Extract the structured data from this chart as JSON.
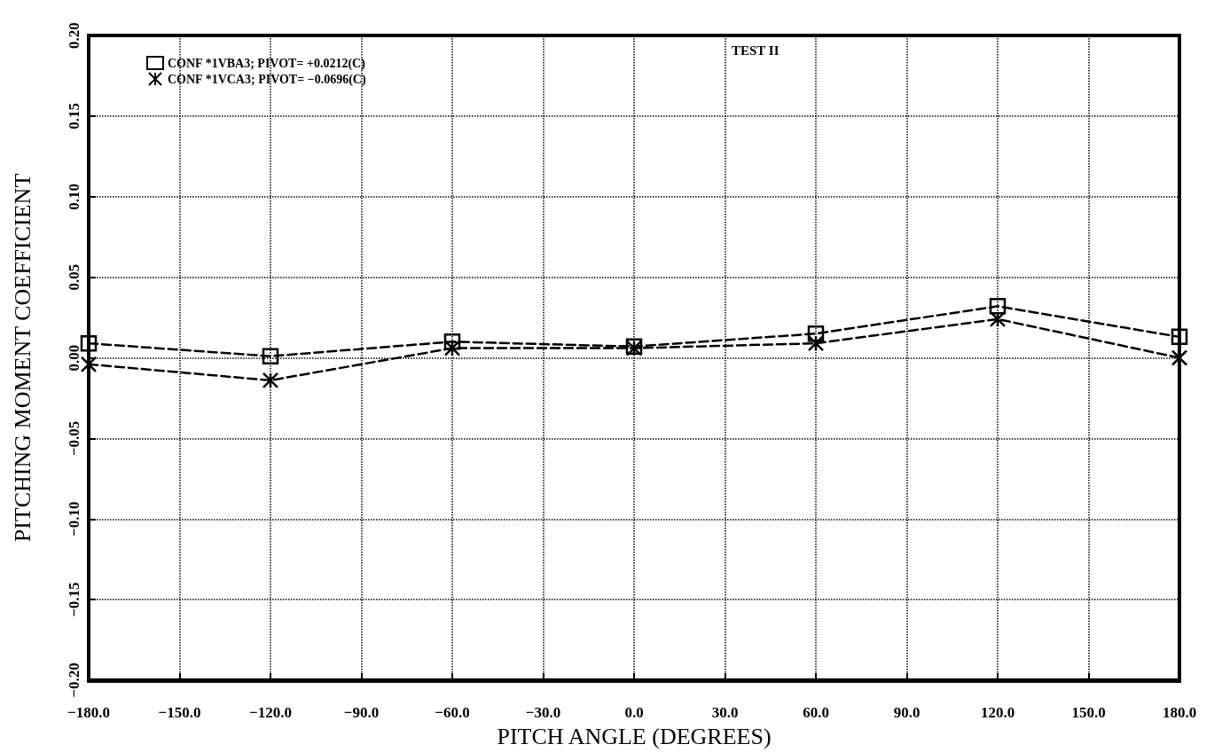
{
  "chart_data": {
    "type": "line",
    "title": "TEST II",
    "xlabel": "PITCH ANGLE (DEGREES)",
    "ylabel": "PITCHING MOMENT COEFFICIENT",
    "x": [
      -180,
      -120,
      -60,
      0,
      60,
      120,
      180
    ],
    "series": [
      {
        "name": "CONF *1VBA3; PIVOT= +0.0212(C)",
        "color": "#000000",
        "marker": "square",
        "values": [
          0.009,
          0.001,
          0.01,
          0.007,
          0.015,
          0.032,
          0.013
        ]
      },
      {
        "name": "CONF *1VCA3; PIVOT= −0.0696(C)",
        "color": "#000000",
        "marker": "cross",
        "values": [
          -0.004,
          -0.014,
          0.006,
          0.006,
          0.009,
          0.024,
          0.0
        ]
      }
    ],
    "xlim": [
      -180,
      180
    ],
    "xticks": [
      {
        "value": -180,
        "label": "−180.0"
      },
      {
        "value": -150,
        "label": "−150.0"
      },
      {
        "value": -120,
        "label": "−120.0"
      },
      {
        "value": -90,
        "label": "−90.0"
      },
      {
        "value": -60,
        "label": "−60.0"
      },
      {
        "value": -30,
        "label": "−30.0"
      },
      {
        "value": 0,
        "label": "0.0"
      },
      {
        "value": 30,
        "label": "30.0"
      },
      {
        "value": 60,
        "label": "60.0"
      },
      {
        "value": 90,
        "label": "90.0"
      },
      {
        "value": 120,
        "label": "120.0"
      },
      {
        "value": 150,
        "label": "150.0"
      },
      {
        "value": 180,
        "label": "180.0"
      }
    ],
    "ylim": [
      -0.2,
      0.2
    ],
    "yticks": [
      {
        "value": -0.2,
        "label": "−0.20"
      },
      {
        "value": -0.15,
        "label": "−0.15"
      },
      {
        "value": -0.1,
        "label": "−0.10"
      },
      {
        "value": -0.05,
        "label": "−0.05"
      },
      {
        "value": 0,
        "label": "0.00"
      },
      {
        "value": 0.05,
        "label": "0.05"
      },
      {
        "value": 0.1,
        "label": "0.10"
      },
      {
        "value": 0.15,
        "label": "0.15"
      },
      {
        "value": 0.2,
        "label": "0.20"
      }
    ],
    "grid": true,
    "legend": "top left",
    "line_style": "dashed"
  }
}
